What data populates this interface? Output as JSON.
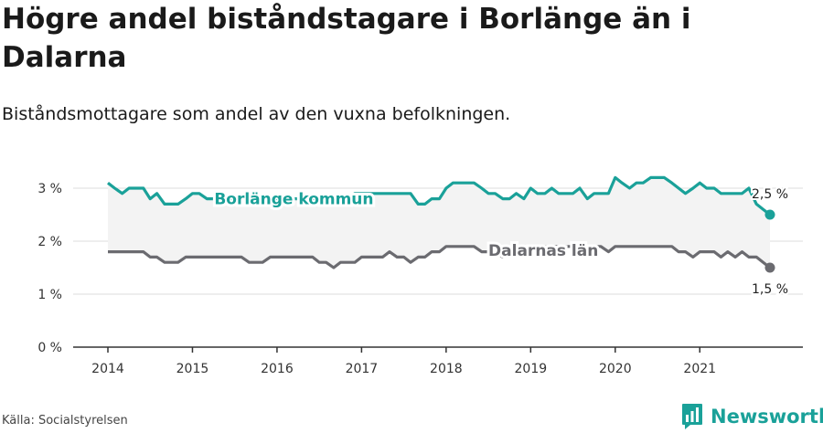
{
  "title": "Högre andel biståndstagare i Borlänge än i Dalarna",
  "subtitle": "Biståndsmottagare som andel av den vuxna befolkningen.",
  "source": "Källa: Socialstyrelsen",
  "brand": "Newsworthy",
  "colors": {
    "borlange": "#1aa199",
    "dalarna": "#6b6b70",
    "band": "#f3f3f3",
    "grid": "#dddddd",
    "axis": "#333333"
  },
  "chart_data": {
    "type": "line",
    "title": "Högre andel biståndstagare i Borlänge än i Dalarna",
    "subtitle": "Biståndsmottagare som andel av den vuxna befolkningen.",
    "xlabel": "",
    "ylabel": "",
    "xlim": [
      2014.0,
      2021.83
    ],
    "ylim": [
      0,
      3.5
    ],
    "x_ticks": [
      "2014",
      "2015",
      "2016",
      "2017",
      "2018",
      "2019",
      "2020",
      "2021"
    ],
    "y_ticks": [
      "0 %",
      "1 %",
      "2 %",
      "3 %"
    ],
    "y_tick_values": [
      0,
      1,
      2,
      3
    ],
    "grid": true,
    "legend": "inline labels",
    "series": [
      {
        "name": "Borlänge kommun",
        "last_label": "2,5 %",
        "points": [
          [
            2014.0,
            3.1
          ],
          [
            2014.08,
            3.0
          ],
          [
            2014.17,
            2.9
          ],
          [
            2014.25,
            3.0
          ],
          [
            2014.33,
            3.0
          ],
          [
            2014.42,
            3.0
          ],
          [
            2014.5,
            2.8
          ],
          [
            2014.58,
            2.9
          ],
          [
            2014.67,
            2.7
          ],
          [
            2014.75,
            2.7
          ],
          [
            2014.83,
            2.7
          ],
          [
            2014.92,
            2.8
          ],
          [
            2015.0,
            2.9
          ],
          [
            2015.08,
            2.9
          ],
          [
            2015.17,
            2.8
          ],
          [
            2015.25,
            2.8
          ],
          [
            2015.33,
            2.8
          ],
          [
            2015.42,
            2.8
          ],
          [
            2015.5,
            2.7
          ],
          [
            2015.58,
            2.7
          ],
          [
            2015.67,
            2.7
          ],
          [
            2015.75,
            2.7
          ],
          [
            2015.83,
            2.7
          ],
          [
            2015.92,
            2.7
          ],
          [
            2016.0,
            2.8
          ],
          [
            2016.08,
            2.8
          ],
          [
            2016.17,
            2.8
          ],
          [
            2016.25,
            2.8
          ],
          [
            2016.33,
            2.8
          ],
          [
            2016.42,
            2.8
          ],
          [
            2016.5,
            2.8
          ],
          [
            2016.58,
            2.8
          ],
          [
            2016.67,
            2.8
          ],
          [
            2016.75,
            2.8
          ],
          [
            2016.83,
            2.8
          ],
          [
            2016.92,
            2.9
          ],
          [
            2017.0,
            2.9
          ],
          [
            2017.08,
            2.9
          ],
          [
            2017.17,
            2.9
          ],
          [
            2017.25,
            2.9
          ],
          [
            2017.33,
            2.9
          ],
          [
            2017.42,
            2.9
          ],
          [
            2017.5,
            2.9
          ],
          [
            2017.58,
            2.9
          ],
          [
            2017.67,
            2.7
          ],
          [
            2017.75,
            2.7
          ],
          [
            2017.83,
            2.8
          ],
          [
            2017.92,
            2.8
          ],
          [
            2018.0,
            3.0
          ],
          [
            2018.08,
            3.1
          ],
          [
            2018.17,
            3.1
          ],
          [
            2018.25,
            3.1
          ],
          [
            2018.33,
            3.1
          ],
          [
            2018.42,
            3.0
          ],
          [
            2018.5,
            2.9
          ],
          [
            2018.58,
            2.9
          ],
          [
            2018.67,
            2.8
          ],
          [
            2018.75,
            2.8
          ],
          [
            2018.83,
            2.9
          ],
          [
            2018.92,
            2.8
          ],
          [
            2019.0,
            3.0
          ],
          [
            2019.08,
            2.9
          ],
          [
            2019.17,
            2.9
          ],
          [
            2019.25,
            3.0
          ],
          [
            2019.33,
            2.9
          ],
          [
            2019.42,
            2.9
          ],
          [
            2019.5,
            2.9
          ],
          [
            2019.58,
            3.0
          ],
          [
            2019.67,
            2.8
          ],
          [
            2019.75,
            2.9
          ],
          [
            2019.83,
            2.9
          ],
          [
            2019.92,
            2.9
          ],
          [
            2020.0,
            3.2
          ],
          [
            2020.08,
            3.1
          ],
          [
            2020.17,
            3.0
          ],
          [
            2020.25,
            3.1
          ],
          [
            2020.33,
            3.1
          ],
          [
            2020.42,
            3.2
          ],
          [
            2020.5,
            3.2
          ],
          [
            2020.58,
            3.2
          ],
          [
            2020.67,
            3.1
          ],
          [
            2020.75,
            3.0
          ],
          [
            2020.83,
            2.9
          ],
          [
            2020.92,
            3.0
          ],
          [
            2021.0,
            3.1
          ],
          [
            2021.08,
            3.0
          ],
          [
            2021.17,
            3.0
          ],
          [
            2021.25,
            2.9
          ],
          [
            2021.33,
            2.9
          ],
          [
            2021.42,
            2.9
          ],
          [
            2021.5,
            2.9
          ],
          [
            2021.58,
            3.0
          ],
          [
            2021.67,
            2.7
          ],
          [
            2021.75,
            2.6
          ],
          [
            2021.83,
            2.5
          ]
        ]
      },
      {
        "name": "Dalarnas län",
        "last_label": "1,5 %",
        "points": [
          [
            2014.0,
            1.8
          ],
          [
            2014.08,
            1.8
          ],
          [
            2014.17,
            1.8
          ],
          [
            2014.25,
            1.8
          ],
          [
            2014.33,
            1.8
          ],
          [
            2014.42,
            1.8
          ],
          [
            2014.5,
            1.7
          ],
          [
            2014.58,
            1.7
          ],
          [
            2014.67,
            1.6
          ],
          [
            2014.75,
            1.6
          ],
          [
            2014.83,
            1.6
          ],
          [
            2014.92,
            1.7
          ],
          [
            2015.0,
            1.7
          ],
          [
            2015.08,
            1.7
          ],
          [
            2015.17,
            1.7
          ],
          [
            2015.25,
            1.7
          ],
          [
            2015.33,
            1.7
          ],
          [
            2015.42,
            1.7
          ],
          [
            2015.5,
            1.7
          ],
          [
            2015.58,
            1.7
          ],
          [
            2015.67,
            1.6
          ],
          [
            2015.75,
            1.6
          ],
          [
            2015.83,
            1.6
          ],
          [
            2015.92,
            1.7
          ],
          [
            2016.0,
            1.7
          ],
          [
            2016.08,
            1.7
          ],
          [
            2016.17,
            1.7
          ],
          [
            2016.25,
            1.7
          ],
          [
            2016.33,
            1.7
          ],
          [
            2016.42,
            1.7
          ],
          [
            2016.5,
            1.6
          ],
          [
            2016.58,
            1.6
          ],
          [
            2016.67,
            1.5
          ],
          [
            2016.75,
            1.6
          ],
          [
            2016.83,
            1.6
          ],
          [
            2016.92,
            1.6
          ],
          [
            2017.0,
            1.7
          ],
          [
            2017.08,
            1.7
          ],
          [
            2017.17,
            1.7
          ],
          [
            2017.25,
            1.7
          ],
          [
            2017.33,
            1.8
          ],
          [
            2017.42,
            1.7
          ],
          [
            2017.5,
            1.7
          ],
          [
            2017.58,
            1.6
          ],
          [
            2017.67,
            1.7
          ],
          [
            2017.75,
            1.7
          ],
          [
            2017.83,
            1.8
          ],
          [
            2017.92,
            1.8
          ],
          [
            2018.0,
            1.9
          ],
          [
            2018.08,
            1.9
          ],
          [
            2018.17,
            1.9
          ],
          [
            2018.25,
            1.9
          ],
          [
            2018.33,
            1.9
          ],
          [
            2018.42,
            1.8
          ],
          [
            2018.5,
            1.8
          ],
          [
            2018.58,
            1.8
          ],
          [
            2018.67,
            1.7
          ],
          [
            2018.75,
            1.8
          ],
          [
            2018.83,
            1.8
          ],
          [
            2018.92,
            1.8
          ],
          [
            2019.0,
            1.9
          ],
          [
            2019.08,
            1.9
          ],
          [
            2019.17,
            1.9
          ],
          [
            2019.25,
            1.9
          ],
          [
            2019.33,
            1.9
          ],
          [
            2019.42,
            1.9
          ],
          [
            2019.5,
            1.9
          ],
          [
            2019.58,
            1.9
          ],
          [
            2019.67,
            1.9
          ],
          [
            2019.75,
            1.9
          ],
          [
            2019.83,
            1.9
          ],
          [
            2019.92,
            1.8
          ],
          [
            2020.0,
            1.9
          ],
          [
            2020.08,
            1.9
          ],
          [
            2020.17,
            1.9
          ],
          [
            2020.25,
            1.9
          ],
          [
            2020.33,
            1.9
          ],
          [
            2020.42,
            1.9
          ],
          [
            2020.5,
            1.9
          ],
          [
            2020.58,
            1.9
          ],
          [
            2020.67,
            1.9
          ],
          [
            2020.75,
            1.8
          ],
          [
            2020.83,
            1.8
          ],
          [
            2020.92,
            1.7
          ],
          [
            2021.0,
            1.8
          ],
          [
            2021.08,
            1.8
          ],
          [
            2021.17,
            1.8
          ],
          [
            2021.25,
            1.7
          ],
          [
            2021.33,
            1.8
          ],
          [
            2021.42,
            1.7
          ],
          [
            2021.5,
            1.8
          ],
          [
            2021.58,
            1.7
          ],
          [
            2021.67,
            1.7
          ],
          [
            2021.75,
            1.6
          ],
          [
            2021.83,
            1.5
          ]
        ]
      }
    ]
  }
}
